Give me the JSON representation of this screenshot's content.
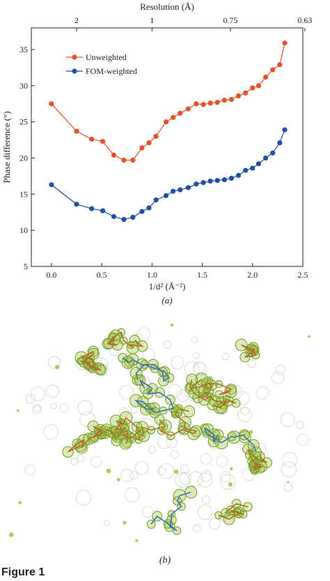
{
  "chart_data": {
    "type": "line",
    "panel_label": "(a)",
    "xlabel": "1/d² (Å⁻²)",
    "ylabel": "Phase difference (°)",
    "top_axis_label": "Resolution (Å)",
    "top_ticks": [
      {
        "label": "2",
        "x": 0.25
      },
      {
        "label": "1",
        "x": 1.0
      },
      {
        "label": "0.75",
        "x": 1.78
      },
      {
        "label": "0.63",
        "x": 2.52
      }
    ],
    "xlim": [
      -0.2,
      2.5
    ],
    "ylim": [
      5,
      38
    ],
    "xticks": [
      "0.0",
      "0.5",
      "1.0",
      "1.5",
      "2.0",
      "2.5"
    ],
    "xtick_values": [
      0.0,
      0.5,
      1.0,
      1.5,
      2.0,
      2.5
    ],
    "yticks": [
      "5",
      "10",
      "15",
      "20",
      "25",
      "30",
      "35"
    ],
    "ytick_values": [
      5,
      10,
      15,
      20,
      25,
      30,
      35
    ],
    "legend_position": "top-left",
    "series": [
      {
        "name": "Unweighted",
        "color": "#e8502a",
        "x": [
          0.0,
          0.25,
          0.4,
          0.51,
          0.62,
          0.72,
          0.81,
          0.9,
          0.97,
          1.04,
          1.14,
          1.21,
          1.28,
          1.36,
          1.44,
          1.51,
          1.58,
          1.65,
          1.72,
          1.79,
          1.86,
          1.93,
          2.0,
          2.06,
          2.13,
          2.2,
          2.27,
          2.32
        ],
        "y": [
          27.5,
          23.7,
          22.6,
          22.3,
          20.4,
          19.7,
          19.7,
          21.4,
          22.1,
          23.0,
          25.0,
          25.6,
          26.2,
          26.8,
          27.5,
          27.4,
          27.6,
          27.7,
          28.0,
          28.1,
          28.6,
          29.0,
          29.7,
          30.0,
          31.2,
          32.2,
          32.9,
          35.9
        ]
      },
      {
        "name": "FOM-weighted",
        "color": "#1f4fa6",
        "x": [
          0.0,
          0.25,
          0.4,
          0.51,
          0.62,
          0.72,
          0.81,
          0.9,
          0.97,
          1.04,
          1.14,
          1.21,
          1.28,
          1.36,
          1.44,
          1.51,
          1.58,
          1.65,
          1.72,
          1.79,
          1.86,
          1.93,
          2.0,
          2.06,
          2.13,
          2.2,
          2.27,
          2.32
        ],
        "y": [
          16.3,
          13.6,
          13.0,
          12.7,
          11.9,
          11.5,
          11.8,
          12.6,
          13.1,
          14.2,
          14.8,
          15.4,
          15.6,
          15.9,
          16.4,
          16.6,
          16.8,
          16.9,
          17.0,
          17.2,
          17.6,
          18.3,
          18.6,
          19.2,
          20.0,
          20.7,
          22.1,
          23.9
        ]
      }
    ]
  },
  "density_panel": {
    "panel_label": "(b)",
    "colors": {
      "mesh": "#9bbf3a",
      "mesh_dark": "#6f9a1f",
      "stick_main": "#b06a2a",
      "stick_alt": "#3b6fb4",
      "mesh_faint": "#c8cfb8"
    }
  },
  "figure_caption": "Figure 1"
}
